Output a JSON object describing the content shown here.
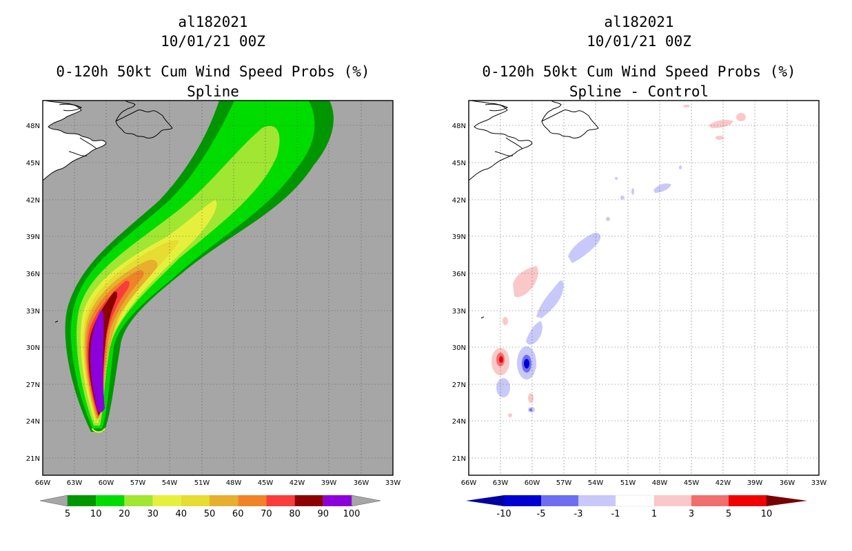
{
  "panels": {
    "left": {
      "storm_id": "al182021",
      "datetime": "10/01/21 00Z",
      "product": "0-120h 50kt Cum Wind Speed Probs (%)",
      "subtitle": "Spline"
    },
    "right": {
      "storm_id": "al182021",
      "datetime": "10/01/21 00Z",
      "product": "0-120h 50kt Cum Wind Speed Probs (%)",
      "subtitle": "Spline - Control"
    }
  },
  "axes": {
    "lat_labels": [
      "48N",
      "45N",
      "42N",
      "39N",
      "36N",
      "33N",
      "30N",
      "27N",
      "24N",
      "21N"
    ],
    "lon_labels": [
      "66W",
      "63W",
      "60W",
      "57W",
      "54W",
      "51W",
      "48W",
      "45W",
      "42W",
      "39W",
      "36W",
      "33W"
    ],
    "lat_values": [
      48,
      45,
      42,
      39,
      36,
      33,
      30,
      27,
      24,
      21
    ],
    "lon_values": [
      -66,
      -63,
      -60,
      -57,
      -54,
      -51,
      -48,
      -45,
      -42,
      -39,
      -36,
      -33
    ],
    "lat_range": [
      19.8,
      50.0
    ],
    "lon_range": [
      -66.0,
      -33.0
    ]
  },
  "colorbars": {
    "left": {
      "labels": [
        "5",
        "10",
        "20",
        "30",
        "40",
        "50",
        "60",
        "70",
        "80",
        "90",
        "100"
      ],
      "colors": [
        "#009600",
        "#00dc00",
        "#a0e632",
        "#e6f03c",
        "#e6dc32",
        "#e6af2d",
        "#f08228",
        "#fa3c3c",
        "#8c0000",
        "#8c00dc"
      ],
      "under_color": "#a6a6a6",
      "over_color": "#a6a6a6"
    },
    "right": {
      "labels": [
        "-10",
        "-5",
        "-3",
        "-1",
        "1",
        "3",
        "5",
        "10"
      ],
      "colors": [
        "#0000d2",
        "#6e6ef0",
        "#c8c8fa",
        "#ffffff",
        "#fac8c8",
        "#f06e6e",
        "#f00000"
      ],
      "under_color": "#0000a0",
      "over_color": "#780000"
    }
  },
  "map_fields": {
    "left_background": "#a6a6a6",
    "right_background": "#ffffff",
    "coastline_color": "#000000"
  }
}
